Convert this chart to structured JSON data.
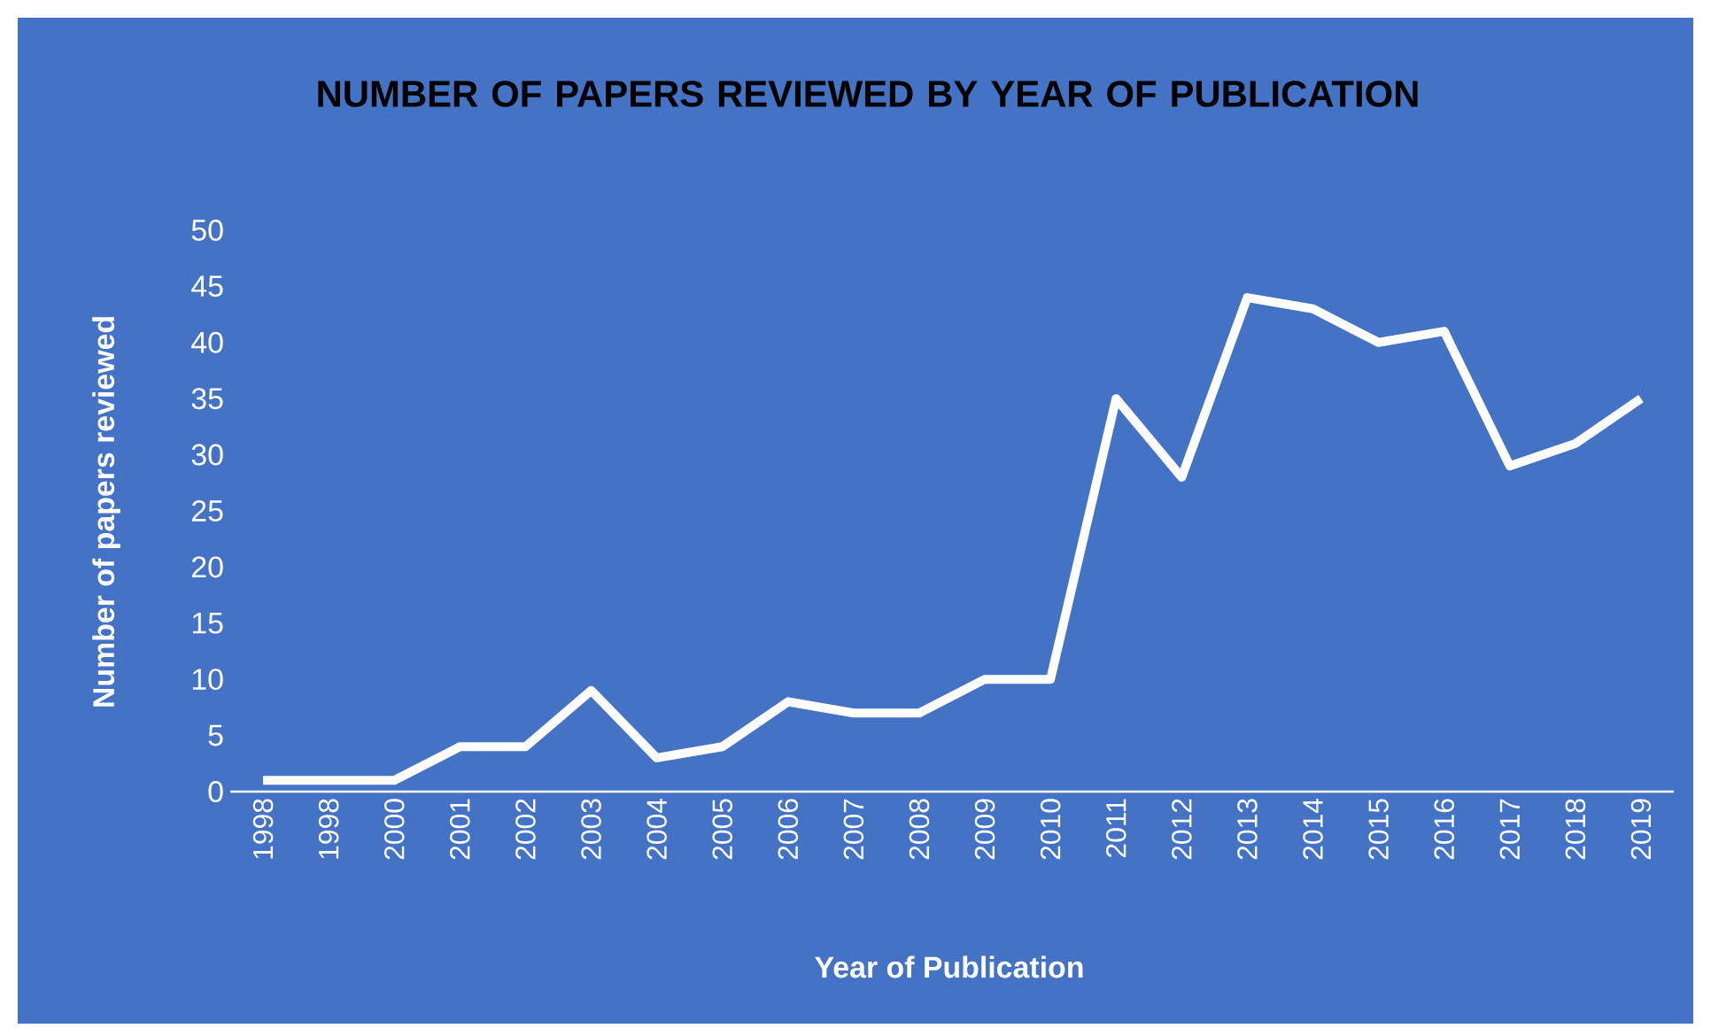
{
  "chart_data": {
    "type": "line",
    "title": "NUMBER OF PAPERS REVIEWED BY YEAR OF PUBLICATION",
    "xlabel": "Year of Publication",
    "ylabel": "Number of papers reviewed",
    "categories": [
      "1998",
      "1998",
      "2000",
      "2001",
      "2002",
      "2003",
      "2004",
      "2005",
      "2006",
      "2007",
      "2008",
      "2009",
      "2010",
      "2011",
      "2012",
      "2013",
      "2014",
      "2015",
      "2016",
      "2017",
      "2018",
      "2019"
    ],
    "values": [
      1,
      1,
      1,
      4,
      4,
      9,
      3,
      4,
      8,
      7,
      7,
      10,
      10,
      35,
      28,
      44,
      43,
      40,
      41,
      29,
      31,
      35
    ],
    "color": "#ffffff",
    "ylim": [
      0,
      50
    ],
    "yticks": [
      0,
      5,
      10,
      15,
      20,
      25,
      30,
      35,
      40,
      45,
      50
    ]
  }
}
